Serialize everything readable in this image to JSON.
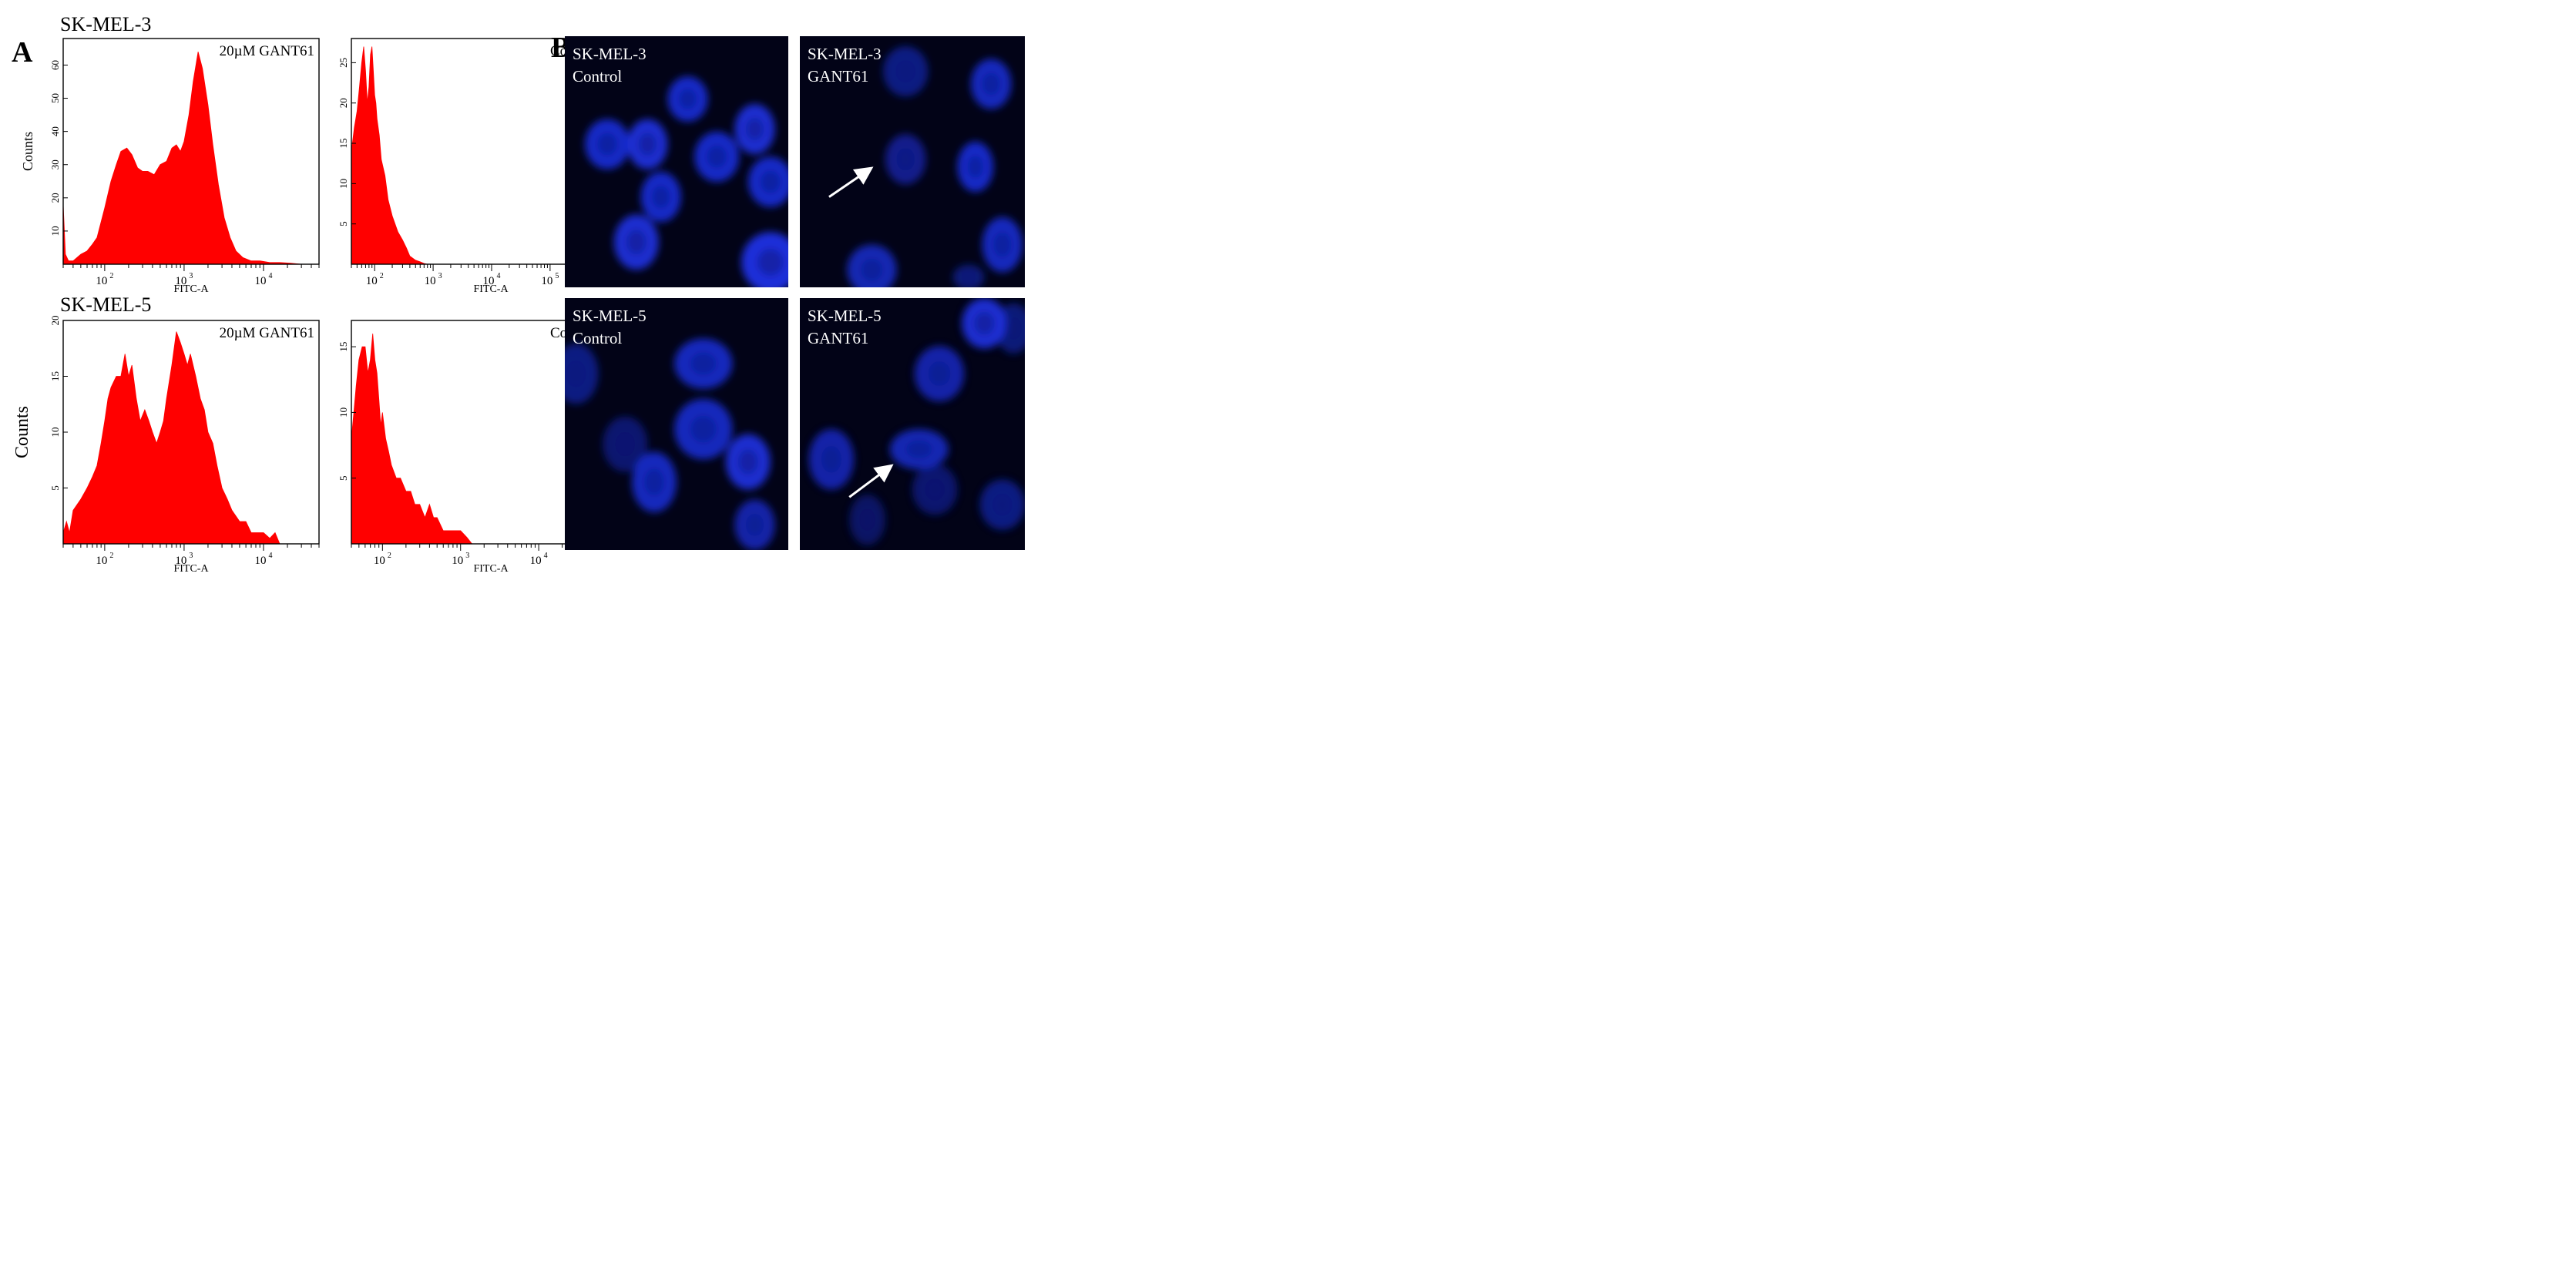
{
  "panel_letters": {
    "a": "A",
    "b": "B"
  },
  "panel_a": {
    "cell_lines": [
      "SK-MEL-3",
      "SK-MEL-5"
    ],
    "y_axis_label": "Counts",
    "x_axis_label": "FITC-A",
    "conditions": {
      "treated": "20µM GANT61",
      "control": "Control"
    },
    "tick_exponents": {
      "a": "2",
      "b": "3",
      "c": "4",
      "d": "5"
    },
    "tick_base": "10"
  },
  "panel_b": {
    "labels": [
      {
        "line": "SK-MEL-3",
        "condition": "Control"
      },
      {
        "line": "SK-MEL-3",
        "condition": "GANT61"
      },
      {
        "line": "SK-MEL-5",
        "condition": "Control"
      },
      {
        "line": "SK-MEL-5",
        "condition": "GANT61"
      }
    ],
    "nucleus_color": "#1a2fd9",
    "background_color": "#020317",
    "arrow_color": "#ffffff"
  },
  "chart_data": [
    {
      "type": "area",
      "title": "20µM GANT61",
      "group": "SK-MEL-3",
      "xlabel": "FITC-A",
      "ylabel": "Counts",
      "x_scale": "log",
      "xlim": [
        30,
        50000
      ],
      "ylim": [
        0,
        68
      ],
      "yticks": [
        10,
        20,
        30,
        40,
        50,
        60
      ],
      "color": "#ff0000",
      "x": [
        30,
        32,
        35,
        40,
        50,
        60,
        70,
        80,
        100,
        120,
        140,
        160,
        190,
        220,
        260,
        300,
        350,
        420,
        500,
        600,
        700,
        800,
        900,
        1000,
        1150,
        1300,
        1500,
        1700,
        2000,
        2300,
        2700,
        3200,
        3800,
        4500,
        5500,
        7000,
        9000,
        12000,
        16000,
        22000,
        30000
      ],
      "y": [
        18,
        3,
        1,
        1,
        3,
        4,
        6,
        8,
        17,
        25,
        30,
        34,
        35,
        33,
        29,
        28,
        28,
        27,
        30,
        31,
        35,
        36,
        34,
        37,
        45,
        55,
        64,
        59,
        48,
        36,
        24,
        14,
        8,
        4,
        2,
        1,
        1,
        0.5,
        0.5,
        0.3,
        0
      ]
    },
    {
      "type": "area",
      "title": "Control",
      "group": "SK-MEL-3",
      "xlabel": "FITC-A",
      "ylabel": "",
      "x_scale": "log",
      "xlim": [
        40,
        700000
      ],
      "ylim": [
        0,
        28
      ],
      "yticks": [
        5,
        10,
        15,
        20,
        25
      ],
      "color": "#ff0000",
      "x": [
        40,
        45,
        50,
        55,
        60,
        65,
        70,
        75,
        80,
        85,
        90,
        95,
        100,
        105,
        110,
        120,
        130,
        150,
        170,
        200,
        250,
        300,
        350,
        400,
        500,
        600,
        700,
        800
      ],
      "y": [
        14,
        17,
        19,
        22,
        25,
        27,
        24,
        20,
        22,
        26,
        27,
        24,
        21,
        20,
        18,
        16,
        13,
        11,
        8,
        6,
        4,
        3,
        2,
        1,
        0.5,
        0.3,
        0.1,
        0
      ]
    },
    {
      "type": "area",
      "title": "20µM GANT61",
      "group": "SK-MEL-5",
      "xlabel": "FITC-A",
      "ylabel": "Counts",
      "x_scale": "log",
      "xlim": [
        30,
        50000
      ],
      "ylim": [
        0,
        20
      ],
      "yticks": [
        5,
        10,
        15,
        20
      ],
      "color": "#ff0000",
      "x": [
        30,
        33,
        36,
        40,
        50,
        60,
        70,
        80,
        90,
        100,
        110,
        120,
        140,
        160,
        180,
        200,
        220,
        250,
        280,
        320,
        360,
        400,
        450,
        500,
        550,
        600,
        700,
        800,
        900,
        1000,
        1100,
        1200,
        1400,
        1600,
        1800,
        2000,
        2300,
        2600,
        3000,
        3500,
        4000,
        5000,
        6000,
        7000,
        8000,
        10000,
        12000,
        14000,
        16000
      ],
      "y": [
        1,
        2,
        1,
        3,
        4,
        5,
        6,
        7,
        9,
        11,
        13,
        14,
        15,
        15,
        17,
        15,
        16,
        13,
        11,
        12,
        11,
        10,
        9,
        10,
        11,
        13,
        16,
        19,
        18,
        17,
        16,
        17,
        15,
        13,
        12,
        10,
        9,
        7,
        5,
        4,
        3,
        2,
        2,
        1,
        1,
        1,
        0.5,
        1,
        0
      ]
    },
    {
      "type": "area",
      "title": "Control",
      "group": "SK-MEL-5",
      "xlabel": "FITC-A",
      "ylabel": "",
      "x_scale": "log",
      "xlim": [
        40,
        60000
      ],
      "ylim": [
        0,
        17
      ],
      "yticks": [
        5,
        10,
        15
      ],
      "color": "#ff0000",
      "x": [
        40,
        43,
        46,
        50,
        55,
        60,
        65,
        70,
        75,
        80,
        85,
        90,
        95,
        100,
        110,
        120,
        130,
        150,
        170,
        200,
        230,
        260,
        300,
        350,
        400,
        450,
        500,
        600,
        700,
        800,
        1000,
        1200,
        1400
      ],
      "y": [
        8,
        10,
        12,
        14,
        15,
        15,
        13,
        14,
        16,
        14,
        13,
        11,
        9,
        10,
        8,
        7,
        6,
        5,
        5,
        4,
        4,
        3,
        3,
        2,
        3,
        2,
        2,
        1,
        1,
        1,
        1,
        0.5,
        0
      ]
    }
  ]
}
